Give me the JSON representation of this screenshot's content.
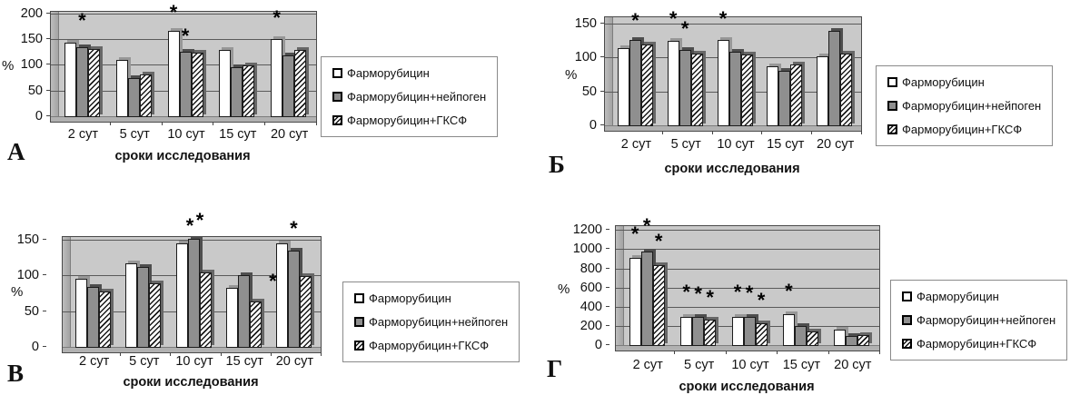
{
  "legend": {
    "items": [
      "Фарморубицин",
      "Фарморубицин+нейпоген",
      "Фарморубицин+ГКСФ"
    ]
  },
  "chart_data": [
    {
      "id": "A",
      "type": "bar",
      "letter": "А",
      "xlabel": "сроки исследования",
      "ylabel": "%",
      "ylim": [
        0,
        200
      ],
      "yticks": [
        0,
        50,
        100,
        150,
        200
      ],
      "grid": true,
      "legend_position": "right",
      "categories": [
        "2 сут",
        "5 сут",
        "10 сут",
        "15 сут",
        "20 сут"
      ],
      "series": [
        {
          "name": "Фарморубицин",
          "values": [
            145,
            111,
            168,
            131,
            152
          ]
        },
        {
          "name": "Фарморубицин+нейпоген",
          "values": [
            136,
            76,
            127,
            97,
            120
          ]
        },
        {
          "name": "Фарморубицин+ГКСФ",
          "values": [
            133,
            83,
            126,
            100,
            130
          ]
        }
      ],
      "significance_marks": [
        {
          "group": 0,
          "series": 1,
          "y": 180
        },
        {
          "group": 2,
          "series": 0,
          "y": 196
        },
        {
          "group": 2,
          "series": 1,
          "y": 150
        },
        {
          "group": 4,
          "series": 0,
          "y": 186
        }
      ]
    },
    {
      "id": "B",
      "type": "bar",
      "letter": "Б",
      "xlabel": "сроки исследования",
      "ylabel": "%",
      "ylim": [
        0,
        150
      ],
      "yticks": [
        0,
        50,
        100,
        150
      ],
      "grid": true,
      "legend_position": "right",
      "categories": [
        "2 сут",
        "5 сут",
        "10 сут",
        "15 сут",
        "20 сут"
      ],
      "series": [
        {
          "name": "Фарморубицин",
          "values": [
            115,
            126,
            127,
            88,
            103
          ]
        },
        {
          "name": "Фарморубицин+нейпоген",
          "values": [
            127,
            112,
            109,
            82,
            140
          ]
        },
        {
          "name": "Фарморубицин+ГКСФ",
          "values": [
            120,
            107,
            105,
            91,
            107
          ]
        }
      ],
      "significance_marks": [
        {
          "group": 0,
          "series": 1,
          "y": 150
        },
        {
          "group": 1,
          "series": 0,
          "y": 152
        },
        {
          "group": 1,
          "series": 1,
          "y": 137
        },
        {
          "group": 2,
          "series": 0,
          "y": 152
        }
      ]
    },
    {
      "id": "V",
      "type": "bar",
      "letter": "В",
      "xlabel": "сроки исследования",
      "ylabel": "%",
      "ylim": [
        0,
        150
      ],
      "yticks": [
        0,
        50,
        100,
        150
      ],
      "grid": true,
      "legend_position": "right",
      "categories": [
        "2 сут",
        "5 сут",
        "10 сут",
        "15 сут",
        "20 сут"
      ],
      "series": [
        {
          "name": "Фарморубицин",
          "values": [
            97,
            118,
            146,
            84,
            146
          ]
        },
        {
          "name": "Фарморубицин+нейпоген",
          "values": [
            85,
            113,
            152,
            102,
            136
          ]
        },
        {
          "name": "Фарморубицин+ГКСФ",
          "values": [
            79,
            90,
            105,
            65,
            100
          ]
        }
      ],
      "significance_marks": [
        {
          "group": 2,
          "series": 1,
          "y": 165,
          "dx": -4
        },
        {
          "group": 2,
          "series": 1,
          "y": 173,
          "dx": 7
        },
        {
          "group": 4,
          "series": 0,
          "y": 88,
          "dx": -10
        },
        {
          "group": 4,
          "series": 1,
          "y": 162
        }
      ]
    },
    {
      "id": "G",
      "type": "bar",
      "letter": "Г",
      "xlabel": "сроки исследования",
      "ylabel": "%",
      "ylim": [
        0,
        1200
      ],
      "yticks": [
        0,
        200,
        400,
        600,
        800,
        1000,
        1200
      ],
      "grid": true,
      "legend_position": "right",
      "categories": [
        "2 сут",
        "5 сут",
        "10 сут",
        "15 сут",
        "20 сут"
      ],
      "series": [
        {
          "name": "Фарморубицин",
          "values": [
            920,
            305,
            305,
            330,
            170
          ]
        },
        {
          "name": "Фарморубицин+нейпоген",
          "values": [
            985,
            300,
            300,
            210,
            105
          ]
        },
        {
          "name": "Фарморубицин+ГКСФ",
          "values": [
            845,
            275,
            240,
            150,
            115
          ]
        }
      ],
      "significance_marks": [
        {
          "group": 0,
          "series": 0,
          "y": 1130
        },
        {
          "group": 0,
          "series": 1,
          "y": 1215
        },
        {
          "group": 0,
          "series": 2,
          "y": 1050
        },
        {
          "group": 1,
          "series": 0,
          "y": 520
        },
        {
          "group": 1,
          "series": 1,
          "y": 505
        },
        {
          "group": 1,
          "series": 2,
          "y": 468
        },
        {
          "group": 2,
          "series": 0,
          "y": 520
        },
        {
          "group": 2,
          "series": 1,
          "y": 508
        },
        {
          "group": 2,
          "series": 2,
          "y": 440
        },
        {
          "group": 3,
          "series": 0,
          "y": 535
        }
      ]
    }
  ]
}
